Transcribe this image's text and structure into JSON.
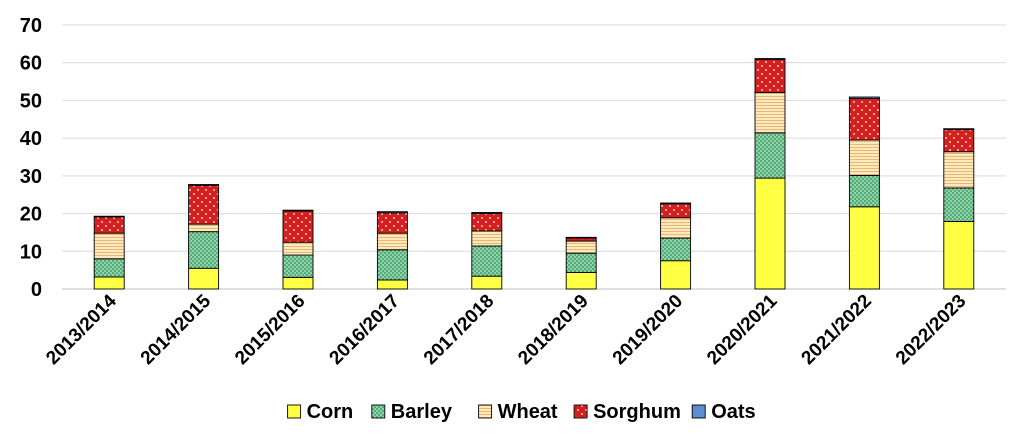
{
  "chart_data": {
    "type": "bar",
    "stacked": true,
    "categories": [
      "2013/2014",
      "2014/2015",
      "2015/2016",
      "2016/2017",
      "2017/2018",
      "2018/2019",
      "2019/2020",
      "2020/2021",
      "2021/2022",
      "2022/2023"
    ],
    "series": [
      {
        "name": "Corn",
        "color": "#FFFF44",
        "pattern": "solid",
        "values": [
          3.2,
          5.5,
          3.1,
          2.4,
          3.4,
          4.4,
          7.5,
          29.4,
          21.8,
          17.9
        ]
      },
      {
        "name": "Barley",
        "color": "#8FD4A8",
        "pattern": "dots",
        "values": [
          4.8,
          9.7,
          5.9,
          8.0,
          8.0,
          5.1,
          6.0,
          12.0,
          8.3,
          8.9
        ]
      },
      {
        "name": "Wheat",
        "color": "#FCE4B0",
        "pattern": "hlines",
        "values": [
          6.8,
          2.0,
          3.4,
          4.4,
          4.0,
          3.2,
          5.4,
          10.7,
          9.4,
          9.6
        ]
      },
      {
        "name": "Sorghum",
        "color": "#D62020",
        "pattern": "white-dots",
        "values": [
          4.3,
          10.3,
          8.3,
          5.4,
          4.6,
          0.8,
          3.7,
          8.8,
          11.0,
          5.9
        ]
      },
      {
        "name": "Oats",
        "color": "#5B8FD1",
        "pattern": "solid",
        "values": [
          0.2,
          0.2,
          0.2,
          0.3,
          0.3,
          0.2,
          0.2,
          0.2,
          0.4,
          0.2
        ]
      }
    ],
    "ylim": [
      0,
      70
    ],
    "yticks": [
      0,
      10,
      20,
      30,
      40,
      50,
      60,
      70
    ],
    "title": "",
    "xlabel": "",
    "ylabel": "",
    "grid": "horizontal",
    "legend": "bottom"
  }
}
